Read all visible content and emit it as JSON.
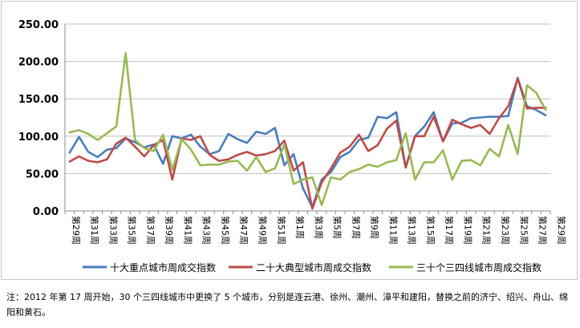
{
  "chart_data": {
    "type": "line",
    "title": "",
    "xlabel": "",
    "ylabel": "",
    "ylim": [
      0,
      250
    ],
    "yticks": [
      "0.00",
      "50.00",
      "100.00",
      "150.00",
      "200.00",
      "250.00"
    ],
    "grid": "horizontal",
    "legend_position": "bottom",
    "x_tick_labels": [
      "第29周",
      "第31周",
      "第33周",
      "第35周",
      "第37周",
      "第39周",
      "第41周",
      "第43周",
      "第45周",
      "第47周",
      "第49周",
      "第51周",
      "第1周",
      "第3周",
      "第5周",
      "第7周",
      "第9周",
      "第11周",
      "第13周",
      "第15周",
      "第17周",
      "第19周",
      "第21周",
      "第23周",
      "第25周",
      "第27周",
      "第29周"
    ],
    "series": [
      {
        "name": "十大重点城市周成交指数",
        "color": "#4a7ebb",
        "values": [
          78,
          99,
          79,
          72,
          82,
          84,
          97,
          92,
          85,
          89,
          63,
          100,
          97,
          102,
          86,
          76,
          80,
          103,
          96,
          91,
          106,
          103,
          111,
          61,
          76,
          30,
          5,
          42,
          52,
          72,
          79,
          95,
          98,
          126,
          124,
          132,
          58,
          100,
          113,
          132,
          93,
          117,
          118,
          124,
          125,
          126,
          126,
          127,
          178,
          140,
          135,
          128
        ]
      },
      {
        "name": "二十大典型城市周成交指数",
        "color": "#be4b48",
        "values": [
          66,
          73,
          67,
          65,
          69,
          90,
          98,
          86,
          73,
          88,
          95,
          42,
          97,
          95,
          100,
          75,
          67,
          69,
          75,
          79,
          74,
          76,
          80,
          94,
          54,
          65,
          3,
          38,
          57,
          78,
          86,
          102,
          80,
          88,
          110,
          121,
          58,
          100,
          100,
          126,
          93,
          122,
          116,
          111,
          115,
          103,
          124,
          140,
          177,
          137,
          138,
          138
        ]
      },
      {
        "name": "三十个三四线城市周成交指数",
        "color": "#98b954",
        "values": [
          105,
          108,
          103,
          95,
          104,
          113,
          211,
          95,
          84,
          80,
          102,
          55,
          96,
          82,
          61,
          62,
          62,
          66,
          67,
          54,
          72,
          52,
          57,
          89,
          36,
          42,
          45,
          8,
          45,
          42,
          52,
          56,
          62,
          59,
          65,
          68,
          104,
          42,
          65,
          65,
          81,
          42,
          67,
          68,
          61,
          83,
          73,
          115,
          76,
          168,
          158,
          135
        ]
      }
    ]
  },
  "footnote": "注：2012 年第 17 周开始，30 个三四线城市中更换了 5 个城市，分别是连云港、徐州、潮州、漳平和建阳，替换之前的济宁、绍兴、舟山、绵阳和黄石。"
}
